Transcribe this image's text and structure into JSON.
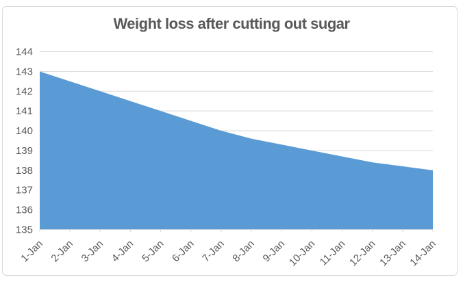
{
  "chart_data": {
    "type": "area",
    "title": "Weight loss after cutting out sugar",
    "categories": [
      "1-Jan",
      "2-Jan",
      "3-Jan",
      "4-Jan",
      "5-Jan",
      "6-Jan",
      "7-Jan",
      "8-Jan",
      "9-Jan",
      "10-Jan",
      "11-Jan",
      "12-Jan",
      "13-Jan",
      "14-Jan"
    ],
    "values": [
      143,
      142.5,
      142,
      141.5,
      141,
      140.5,
      140,
      139.6,
      139.3,
      139,
      138.7,
      138.4,
      138.2,
      138
    ],
    "xlabel": "",
    "ylabel": "",
    "ylim": [
      135,
      144
    ],
    "ytick_step": 1,
    "yticks": [
      "135",
      "136",
      "137",
      "138",
      "139",
      "140",
      "141",
      "142",
      "143",
      "144"
    ],
    "grid": true,
    "legend": "none",
    "x_label_rotation_deg": -45,
    "colors": {
      "area_fill": "#5B9BD5",
      "gridline": "#D9D9D9",
      "axis_line": "#D9D9D9",
      "tick_mark": "#D9D9D9",
      "axis_label": "#595959",
      "title": "#595959",
      "chart_border": "#D9D9D9",
      "background": "#FFFFFF"
    }
  }
}
